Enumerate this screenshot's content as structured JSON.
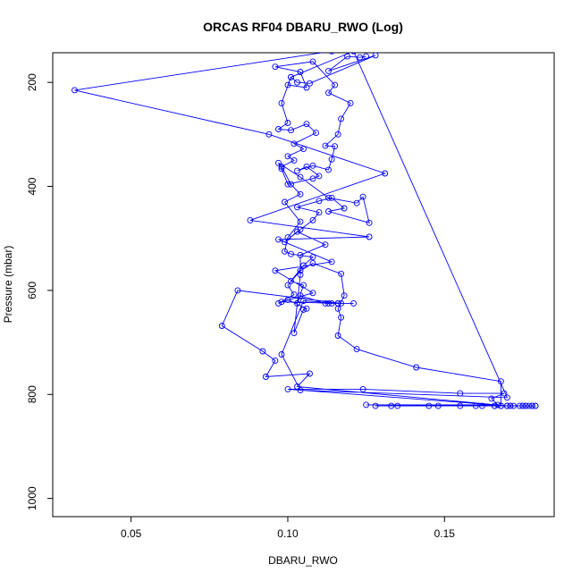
{
  "chart_data": {
    "type": "line",
    "title": "ORCAS RF04 DBARU_RWO (Log)",
    "xlabel": "DBARU_RWO",
    "ylabel": "Pressure (mbar)",
    "x_ticks": [
      "0.05",
      "0.10",
      "0.15"
    ],
    "x_tick_values": [
      0.05,
      0.1,
      0.15
    ],
    "y_ticks": [
      "200",
      "400",
      "600",
      "800",
      "1000"
    ],
    "y_tick_values": [
      200,
      400,
      600,
      800,
      1000
    ],
    "xlim": [
      0.025,
      0.185
    ],
    "ylim": [
      1035,
      143
    ],
    "y_reversed": true,
    "series_color": "#0000ff",
    "marker": "open-circle",
    "series": [
      {
        "points": [
          [
            0.114,
            140
          ],
          [
            0.032,
            215
          ],
          [
            0.094,
            300
          ],
          [
            0.131,
            375
          ],
          [
            0.088,
            465
          ],
          [
            0.126,
            497
          ],
          [
            0.097,
            502
          ],
          [
            0.114,
            545
          ],
          [
            0.096,
            562
          ],
          [
            0.108,
            605
          ],
          [
            0.098,
            622
          ],
          [
            0.116,
            625
          ],
          [
            0.121,
            625
          ],
          [
            0.117,
            625
          ],
          [
            0.084,
            600
          ],
          [
            0.079,
            668
          ],
          [
            0.092,
            717
          ],
          [
            0.096,
            735
          ],
          [
            0.093,
            766
          ],
          [
            0.107,
            760
          ],
          [
            0.103,
            785
          ],
          [
            0.17,
            822
          ],
          [
            0.1,
            790
          ],
          [
            0.124,
            790
          ],
          [
            0.155,
            798
          ],
          [
            0.169,
            798
          ],
          [
            0.165,
            808
          ],
          [
            0.167,
            820
          ],
          [
            0.125,
            820
          ],
          [
            0.179,
            822
          ],
          [
            0.178,
            822
          ],
          [
            0.176,
            822
          ],
          [
            0.175,
            822
          ],
          [
            0.172,
            822
          ],
          [
            0.17,
            822
          ],
          [
            0.168,
            822
          ],
          [
            0.166,
            822
          ],
          [
            0.162,
            822
          ],
          [
            0.155,
            822
          ],
          [
            0.148,
            822
          ],
          [
            0.145,
            822
          ],
          [
            0.135,
            822
          ],
          [
            0.128,
            822
          ],
          [
            0.133,
            822
          ],
          [
            0.16,
            822
          ],
          [
            0.166,
            822
          ],
          [
            0.171,
            822
          ],
          [
            0.174,
            822
          ],
          [
            0.176,
            822
          ],
          [
            0.177,
            822
          ],
          [
            0.178,
            822
          ],
          [
            0.179,
            822
          ],
          [
            0.175,
            822
          ],
          [
            0.171,
            822
          ],
          [
            0.168,
            822
          ],
          [
            0.168,
            775
          ],
          [
            0.141,
            748
          ],
          [
            0.122,
            713
          ],
          [
            0.116,
            687
          ],
          [
            0.117,
            652
          ],
          [
            0.116,
            635
          ],
          [
            0.118,
            610
          ],
          [
            0.117,
            568
          ],
          [
            0.108,
            548
          ],
          [
            0.104,
            562
          ],
          [
            0.1,
            590
          ],
          [
            0.102,
            608
          ],
          [
            0.097,
            625
          ],
          [
            0.1,
            618
          ],
          [
            0.106,
            635
          ],
          [
            0.105,
            637
          ],
          [
            0.102,
            682
          ],
          [
            0.104,
            570
          ],
          [
            0.104,
            532
          ],
          [
            0.112,
            512
          ],
          [
            0.103,
            487
          ],
          [
            0.099,
            507
          ],
          [
            0.104,
            483
          ],
          [
            0.108,
            465
          ],
          [
            0.11,
            450
          ],
          [
            0.103,
            440
          ],
          [
            0.11,
            428
          ],
          [
            0.114,
            422
          ],
          [
            0.118,
            442
          ],
          [
            0.113,
            448
          ],
          [
            0.126,
            470
          ],
          [
            0.124,
            420
          ],
          [
            0.122,
            432
          ],
          [
            0.113,
            422
          ],
          [
            0.104,
            382
          ],
          [
            0.097,
            355
          ],
          [
            0.098,
            366
          ],
          [
            0.1,
            396
          ],
          [
            0.108,
            385
          ],
          [
            0.11,
            380
          ],
          [
            0.106,
            362
          ],
          [
            0.103,
            370
          ],
          [
            0.108,
            360
          ],
          [
            0.113,
            368
          ],
          [
            0.114,
            348
          ],
          [
            0.115,
            323
          ],
          [
            0.112,
            322
          ],
          [
            0.116,
            300
          ],
          [
            0.117,
            270
          ],
          [
            0.12,
            240
          ],
          [
            0.113,
            220
          ],
          [
            0.115,
            205
          ],
          [
            0.108,
            160
          ],
          [
            0.096,
            170
          ],
          [
            0.104,
            180
          ],
          [
            0.106,
            210
          ],
          [
            0.1,
            205
          ],
          [
            0.101,
            190
          ],
          [
            0.098,
            240
          ],
          [
            0.1,
            278
          ],
          [
            0.097,
            290
          ],
          [
            0.101,
            292
          ],
          [
            0.106,
            280
          ],
          [
            0.109,
            297
          ],
          [
            0.102,
            318
          ],
          [
            0.105,
            328
          ],
          [
            0.1,
            342
          ],
          [
            0.102,
            350
          ],
          [
            0.098,
            362
          ],
          [
            0.101,
            396
          ],
          [
            0.104,
            415
          ],
          [
            0.099,
            430
          ],
          [
            0.104,
            468
          ],
          [
            0.1,
            498
          ],
          [
            0.099,
            525
          ],
          [
            0.101,
            530
          ],
          [
            0.108,
            536
          ],
          [
            0.105,
            552
          ],
          [
            0.101,
            582
          ],
          [
            0.105,
            590
          ],
          [
            0.103,
            625
          ],
          [
            0.104,
            610
          ],
          [
            0.112,
            625
          ],
          [
            0.113,
            625
          ],
          [
            0.114,
            625
          ],
          [
            0.116,
            625
          ],
          [
            0.105,
            620
          ],
          [
            0.098,
            723
          ],
          [
            0.104,
            792
          ],
          [
            0.17,
            806
          ],
          [
            0.121,
            140
          ],
          [
            0.101,
            190
          ],
          [
            0.103,
            200
          ],
          [
            0.107,
            202
          ],
          [
            0.128,
            148
          ],
          [
            0.113,
            178
          ],
          [
            0.119,
            150
          ],
          [
            0.123,
            152
          ],
          [
            0.125,
            150
          ]
        ]
      }
    ]
  }
}
